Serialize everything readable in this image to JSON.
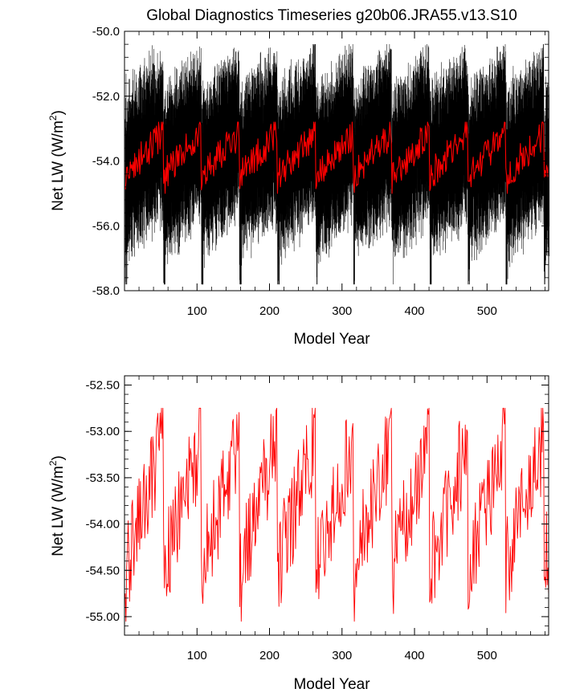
{
  "title": "Global Diagnostics Timeseries g20b06.JRA55.v13.S10",
  "chart_data": [
    {
      "type": "line",
      "xlabel": "Model Year",
      "ylabel": "Net LW (W/m",
      "ylabel_superscript": "2",
      "ylabel_suffix": ")",
      "xlim": [
        0,
        585
      ],
      "ylim": [
        -58.0,
        -50.0
      ],
      "xticks": [
        100,
        200,
        300,
        400,
        500
      ],
      "xtick_labels": [
        "100",
        "200",
        "300",
        "400",
        "500"
      ],
      "yticks": [
        -58.0,
        -56.0,
        -54.0,
        -52.0,
        -50.0
      ],
      "ytick_labels": [
        "-58.0",
        "-56.0",
        "-54.0",
        "-52.0",
        "-50.0"
      ],
      "grid": false,
      "cycle_years": 52.5,
      "series": [
        {
          "color": "#000000",
          "description_type": "monthly",
          "cycle_range": [
            -57.8,
            -50.4
          ],
          "cycle_mean_start": -54.4,
          "cycle_mean_end": -53.1
        },
        {
          "color": "#ff0000",
          "description_type": "annual",
          "cycle_min": -55.0,
          "cycle_max": -52.8
        }
      ]
    },
    {
      "type": "line",
      "xlabel": "Model Year",
      "ylabel": "Net LW (W/m",
      "ylabel_superscript": "2",
      "ylabel_suffix": ")",
      "xlim": [
        0,
        585
      ],
      "ylim": [
        -55.2,
        -52.4
      ],
      "xticks": [
        100,
        200,
        300,
        400,
        500
      ],
      "xtick_labels": [
        "100",
        "200",
        "300",
        "400",
        "500"
      ],
      "yticks": [
        -55.0,
        -54.5,
        -54.0,
        -53.5,
        -53.0,
        -52.5
      ],
      "ytick_labels": [
        "-55.00",
        "-54.50",
        "-54.00",
        "-53.50",
        "-53.00",
        "-52.50"
      ],
      "grid": false,
      "cycle_years": 52.5,
      "series": [
        {
          "color": "#ff0000",
          "description_type": "annual",
          "cycle_min": -55.05,
          "cycle_max": -52.75,
          "cycle_minima_years": [
            5,
            57,
            110,
            163,
            215,
            266,
            319,
            372,
            426,
            477,
            530,
            582
          ]
        }
      ]
    }
  ]
}
